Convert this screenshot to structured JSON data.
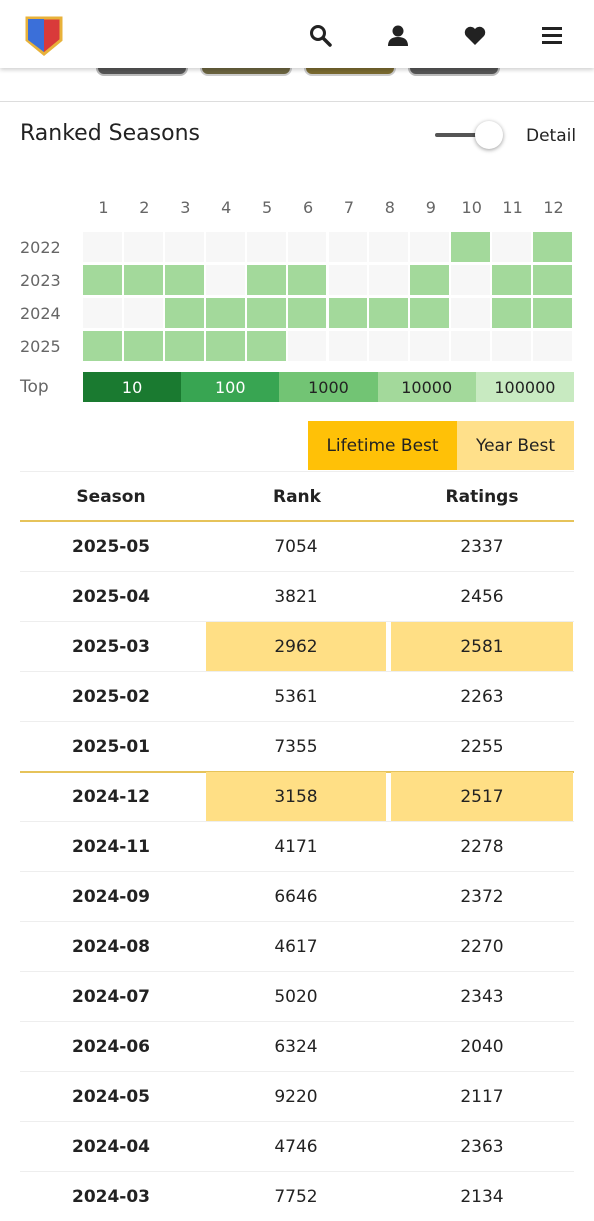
{
  "header": {
    "nav": [
      "search",
      "account",
      "favorites",
      "menu"
    ]
  },
  "section": {
    "title": "Ranked Seasons",
    "toggle_label": "Detail"
  },
  "heatmap": {
    "months": [
      "1",
      "2",
      "3",
      "4",
      "5",
      "6",
      "7",
      "8",
      "9",
      "10",
      "11",
      "12"
    ],
    "years": [
      "2022",
      "2023",
      "2024",
      "2025"
    ],
    "cells": [
      [
        null,
        null,
        null,
        null,
        null,
        null,
        null,
        null,
        null,
        3,
        null,
        3
      ],
      [
        3,
        3,
        3,
        null,
        3,
        3,
        null,
        null,
        3,
        null,
        3,
        3
      ],
      [
        null,
        null,
        3,
        3,
        3,
        3,
        3,
        3,
        3,
        null,
        3,
        3
      ],
      [
        3,
        3,
        3,
        3,
        3,
        null,
        null,
        null,
        null,
        null,
        null,
        null
      ]
    ],
    "empty_color": "#f7f7f7",
    "legend_title": "Top",
    "tiers": [
      {
        "label": "10",
        "color": "#1a7a30"
      },
      {
        "label": "100",
        "color": "#38a552"
      },
      {
        "label": "1000",
        "color": "#72c474"
      },
      {
        "label": "10000",
        "color": "#a3d99b"
      },
      {
        "label": "100000",
        "color": "#c8eac1"
      }
    ]
  },
  "tabs": [
    {
      "label": "Lifetime Best",
      "color": "#ffc107"
    },
    {
      "label": "Year Best",
      "color": "#ffe08a"
    }
  ],
  "table": {
    "columns": [
      "Season",
      "Rank",
      "Ratings"
    ],
    "highlight_color": "#ffdf85",
    "rows": [
      {
        "season": "2025-05",
        "rank": "7054",
        "rating": "2337",
        "highlight": false
      },
      {
        "season": "2025-04",
        "rank": "3821",
        "rating": "2456",
        "highlight": false
      },
      {
        "season": "2025-03",
        "rank": "2962",
        "rating": "2581",
        "highlight": true
      },
      {
        "season": "2025-02",
        "rank": "5361",
        "rating": "2263",
        "highlight": false
      },
      {
        "season": "2025-01",
        "rank": "7355",
        "rating": "2255",
        "highlight": false
      },
      {
        "season": "2024-12",
        "rank": "3158",
        "rating": "2517",
        "highlight": true
      },
      {
        "season": "2024-11",
        "rank": "4171",
        "rating": "2278",
        "highlight": false
      },
      {
        "season": "2024-09",
        "rank": "6646",
        "rating": "2372",
        "highlight": false
      },
      {
        "season": "2024-08",
        "rank": "4617",
        "rating": "2270",
        "highlight": false
      },
      {
        "season": "2024-07",
        "rank": "5020",
        "rating": "2343",
        "highlight": false
      },
      {
        "season": "2024-06",
        "rank": "6324",
        "rating": "2040",
        "highlight": false
      },
      {
        "season": "2024-05",
        "rank": "9220",
        "rating": "2117",
        "highlight": false
      },
      {
        "season": "2024-04",
        "rank": "4746",
        "rating": "2363",
        "highlight": false
      },
      {
        "season": "2024-03",
        "rank": "7752",
        "rating": "2134",
        "highlight": false
      }
    ]
  }
}
